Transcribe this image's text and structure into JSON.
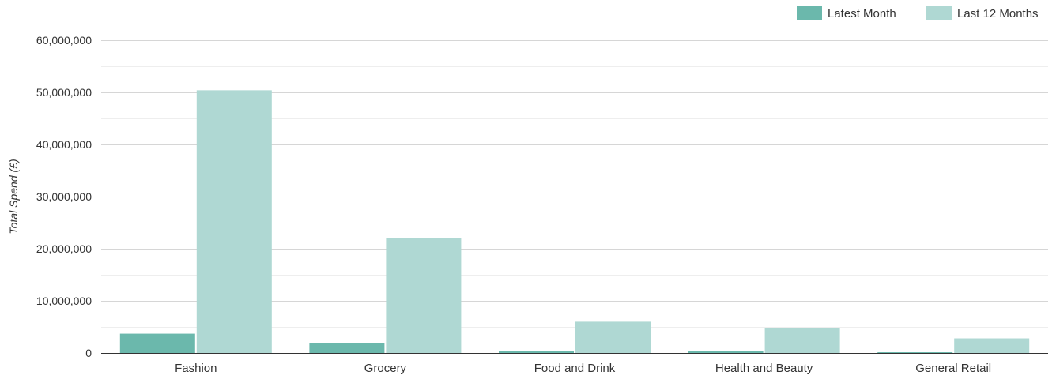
{
  "chart_data": {
    "type": "bar",
    "categories": [
      "Fashion",
      "Grocery",
      "Food and Drink",
      "Health and Beauty",
      "General Retail"
    ],
    "series": [
      {
        "name": "Latest Month",
        "color": "#6bb8ac",
        "values": [
          3700000,
          1850000,
          400000,
          380000,
          150000
        ]
      },
      {
        "name": "Last 12 Months",
        "color": "#afd8d3",
        "values": [
          50400000,
          22000000,
          6000000,
          4700000,
          2800000
        ]
      }
    ],
    "ylabel": "Total Spend (£)",
    "xlabel": "",
    "ylim": [
      0,
      60000000
    ],
    "yticks": [
      0,
      10000000,
      20000000,
      30000000,
      40000000,
      50000000,
      60000000
    ],
    "ytick_labels": [
      "0",
      "10,000,000",
      "20,000,000",
      "30,000,000",
      "40,000,000",
      "50,000,000",
      "60,000,000"
    ],
    "grid": true,
    "minor_grid": true,
    "legend_position": "top-right"
  }
}
